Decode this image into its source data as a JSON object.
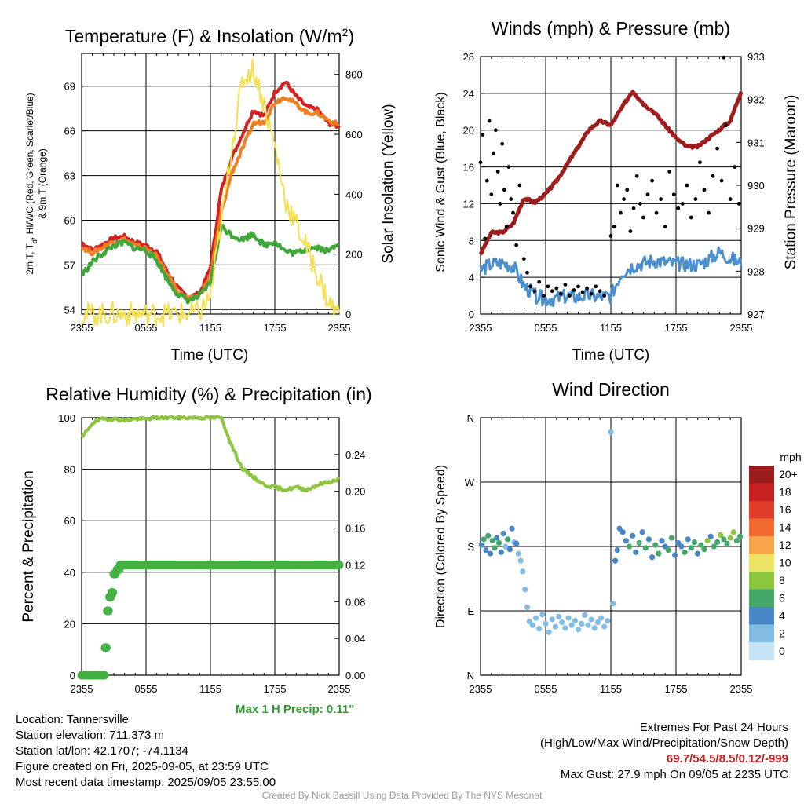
{
  "chart_data": [
    {
      "id": "temperature",
      "type": "line",
      "title": "Temperature (F) & Insolation (W/m",
      "title_sup": "2",
      "title_end": ")",
      "xlabel": "Time (UTC)",
      "ylabel_left_line1": "2m T, T",
      "ylabel_left_sub": "d",
      "ylabel_left_line1_end": ", HI/WC (Red, Green, Scarlet/Blue)",
      "ylabel_left_line2": "& 9m T (Orange)",
      "ylabel_right": "Solar Insolation (Yellow)",
      "x_ticks": [
        "2355",
        "0555",
        "1155",
        "1755",
        "2355"
      ],
      "ylim_left": [
        53.7,
        71.2
      ],
      "yticks_left": [
        "54",
        "57",
        "60",
        "63",
        "66",
        "69"
      ],
      "ylim_right": [
        0,
        870
      ],
      "yticks_right": [
        "0",
        "200",
        "400",
        "600",
        "800"
      ],
      "x_hours": [
        0,
        1,
        2,
        3,
        4,
        5,
        6,
        7,
        8,
        9,
        10,
        11,
        12,
        13,
        14,
        15,
        16,
        17,
        18,
        19,
        20,
        21,
        22,
        23,
        24
      ],
      "series": [
        {
          "color": "#d42020",
          "axis": "left",
          "values": [
            58.5,
            58.0,
            58.4,
            58.8,
            58.9,
            58.5,
            58.3,
            57.9,
            56.5,
            55.4,
            54.8,
            55.1,
            56.8,
            62.0,
            64.2,
            65.8,
            67.4,
            67.0,
            68.6,
            69.3,
            68.3,
            67.6,
            67.4,
            66.5,
            66.3
          ]
        },
        {
          "color": "#f07f22",
          "axis": "left",
          "values": [
            58.2,
            57.8,
            58.2,
            58.6,
            58.7,
            58.3,
            58.1,
            57.6,
            56.3,
            55.2,
            54.7,
            55.0,
            56.2,
            60.5,
            63.2,
            64.8,
            66.5,
            66.6,
            67.9,
            68.3,
            67.8,
            67.2,
            67.2,
            66.7,
            66.4
          ]
        },
        {
          "color": "#3fa63a",
          "axis": "left",
          "values": [
            56.3,
            57.2,
            57.8,
            58.3,
            58.5,
            58.1,
            58.0,
            57.3,
            56.0,
            55.0,
            54.6,
            54.9,
            55.8,
            59.6,
            59.0,
            58.7,
            59.1,
            58.3,
            58.6,
            57.9,
            57.8,
            58.1,
            58.2,
            57.9,
            58.6
          ]
        },
        {
          "color": "#f5e050",
          "axis": "right",
          "values": [
            0,
            0,
            0,
            0,
            0,
            0,
            0,
            0,
            0,
            0,
            0,
            5,
            60,
            300,
            560,
            780,
            820,
            700,
            560,
            380,
            300,
            220,
            130,
            40,
            0
          ]
        }
      ]
    },
    {
      "id": "winds",
      "type": "line",
      "title": "Winds (mph) & Pressure (mb)",
      "xlabel": "Time (UTC)",
      "ylabel_left": "Sonic Wind & Gust (Blue, Black)",
      "ylabel_right": "Station Pressure (Maroon)",
      "x_ticks": [
        "2355",
        "0555",
        "1155",
        "1755",
        "2355"
      ],
      "ylim_left": [
        0,
        28
      ],
      "yticks_left": [
        "0",
        "4",
        "8",
        "12",
        "16",
        "20",
        "24",
        "28"
      ],
      "ylim_right": [
        927,
        933
      ],
      "yticks_right": [
        "927",
        "928",
        "929",
        "930",
        "931",
        "932",
        "933"
      ],
      "x_hours": [
        0,
        1,
        2,
        3,
        4,
        5,
        6,
        7,
        8,
        9,
        10,
        11,
        12,
        13,
        14,
        15,
        16,
        17,
        18,
        19,
        20,
        21,
        22,
        23,
        24
      ],
      "series": [
        {
          "color": "#a01c1c",
          "axis": "right",
          "values": [
            928.4,
            928.9,
            928.9,
            929.1,
            929.7,
            929.6,
            929.8,
            930.1,
            930.5,
            930.9,
            931.3,
            931.5,
            931.4,
            931.8,
            932.2,
            931.9,
            931.7,
            931.4,
            931.1,
            930.9,
            930.9,
            931.1,
            931.3,
            931.5,
            932.2
          ]
        },
        {
          "color": "#4a90d0",
          "axis": "left",
          "values": [
            4.8,
            5.4,
            5.5,
            5.2,
            3.0,
            2.0,
            1.6,
            1.7,
            1.9,
            1.8,
            2.0,
            1.8,
            2.0,
            4.5,
            5.2,
            5.5,
            5.8,
            5.6,
            5.4,
            5.4,
            5.3,
            5.9,
            6.7,
            6.0,
            5.5
          ]
        },
        {
          "type": "scatter",
          "color": "#000000",
          "axis": "left",
          "x": [
            0.0,
            0.2,
            0.4,
            0.6,
            0.8,
            1.0,
            1.2,
            1.4,
            1.6,
            1.8,
            2.0,
            2.2,
            2.4,
            2.6,
            2.8,
            3.0,
            3.3,
            3.6,
            4.0,
            4.3,
            4.6,
            5.0,
            5.4,
            5.8,
            6.2,
            6.6,
            7.0,
            7.4,
            7.8,
            8.2,
            8.6,
            9.0,
            9.4,
            9.8,
            10.2,
            10.6,
            11.0,
            11.4,
            12.0,
            12.3,
            12.6,
            12.9,
            13.2,
            13.5,
            13.8,
            14.1,
            14.4,
            14.7,
            15.0,
            15.4,
            15.8,
            16.2,
            16.6,
            17.0,
            17.4,
            17.8,
            18.2,
            18.6,
            19.0,
            19.4,
            19.8,
            20.2,
            20.6,
            21.0,
            21.4,
            21.8,
            22.2,
            22.4,
            22.6,
            23.0,
            23.4,
            23.8
          ],
          "values": [
            16.5,
            19.5,
            8.2,
            14.5,
            21.0,
            13.0,
            17.5,
            20.0,
            15.5,
            12.0,
            18.5,
            13.5,
            9.5,
            16.0,
            12.5,
            11.0,
            7.5,
            14.0,
            6.0,
            4.5,
            3.0,
            2.5,
            3.5,
            2.0,
            3.0,
            2.5,
            2.8,
            2.2,
            3.2,
            2.0,
            2.6,
            3.0,
            2.4,
            2.8,
            2.2,
            3.0,
            2.5,
            2.0,
            8.5,
            9.5,
            14.0,
            11.0,
            12.5,
            13.5,
            9.0,
            11.5,
            15.0,
            12.0,
            10.5,
            13.0,
            14.5,
            11.0,
            12.5,
            9.5,
            15.5,
            13.0,
            11.5,
            12.0,
            14.0,
            10.5,
            12.5,
            16.5,
            13.5,
            11.0,
            15.0,
            18.0,
            14.5,
            27.9,
            20.5,
            12.5,
            16.0,
            12.0
          ]
        }
      ]
    },
    {
      "id": "humidity",
      "type": "line",
      "title": "Relative Humidity (%) & Precipitation (in)",
      "ylabel_left": "Percent & Precipitation",
      "x_ticks": [
        "2355",
        "0555",
        "1155",
        "1755",
        "2355"
      ],
      "ylim_left": [
        0,
        100
      ],
      "yticks_left": [
        "0",
        "20",
        "40",
        "60",
        "80",
        "100"
      ],
      "ylim_right": [
        0,
        0.28
      ],
      "yticks_right": [
        "0.00",
        "0.04",
        "0.08",
        "0.12",
        "0.16",
        "0.20",
        "0.24"
      ],
      "x_hours": [
        0,
        1,
        2,
        3,
        4,
        5,
        6,
        7,
        8,
        9,
        10,
        11,
        12,
        13,
        14,
        15,
        16,
        17,
        18,
        19,
        20,
        21,
        22,
        23,
        24
      ],
      "series": [
        {
          "color": "#8cc63f",
          "axis": "left",
          "values": [
            92,
            98,
            99.5,
            99.5,
            99,
            99.5,
            99.5,
            100,
            100,
            100,
            100,
            100,
            100,
            100,
            89,
            80,
            77,
            74,
            73,
            72,
            73,
            72,
            74,
            75,
            76
          ]
        },
        {
          "type": "step",
          "color": "#44b044",
          "axis": "right",
          "x": [
            0,
            0.5,
            1.0,
            1.5,
            2.0,
            2.2,
            2.4,
            2.6,
            2.8,
            3.0,
            3.3,
            3.6,
            4.0,
            24
          ],
          "values": [
            0.0,
            0.0,
            0.0,
            0.0,
            0.0,
            0.03,
            0.07,
            0.085,
            0.09,
            0.11,
            0.115,
            0.12,
            0.12,
            0.12
          ]
        }
      ]
    },
    {
      "id": "direction",
      "type": "scatter",
      "title": "Wind Direction",
      "ylabel_left": "Direction (Colored By Speed)",
      "x_ticks": [
        "2355",
        "0555",
        "1155",
        "1755",
        "2355"
      ],
      "yticks_left": [
        "N",
        "E",
        "S",
        "W",
        "N"
      ],
      "ylim_left": [
        0,
        360
      ],
      "legend_title": "mph",
      "legend_labels": [
        "20+",
        "18",
        "16",
        "14",
        "12",
        "10",
        "8",
        "6",
        "4",
        "2",
        "0"
      ],
      "legend_colors": [
        "#9b1c1c",
        "#c72020",
        "#e03c2c",
        "#f06a30",
        "#f7a44a",
        "#ece264",
        "#8cc63f",
        "#44a86a",
        "#4886c6",
        "#82bde6",
        "#c4e4f6"
      ],
      "legend_position": "right",
      "x": [
        0.1,
        0.3,
        0.5,
        0.7,
        0.9,
        1.1,
        1.3,
        1.5,
        1.7,
        1.9,
        2.1,
        2.3,
        2.5,
        2.7,
        2.9,
        3.1,
        3.3,
        3.5,
        3.7,
        3.9,
        4.1,
        4.3,
        4.5,
        4.8,
        5.1,
        5.4,
        5.7,
        6.0,
        6.3,
        6.6,
        6.9,
        7.2,
        7.5,
        7.8,
        8.1,
        8.4,
        8.7,
        9.0,
        9.3,
        9.6,
        9.9,
        10.2,
        10.5,
        10.8,
        11.1,
        11.4,
        11.7,
        12.0,
        12.2,
        12.4,
        12.6,
        12.8,
        13.1,
        13.4,
        13.7,
        14.0,
        14.3,
        14.6,
        14.9,
        15.2,
        15.5,
        15.8,
        16.1,
        16.4,
        16.7,
        17.0,
        17.3,
        17.6,
        17.9,
        18.2,
        18.5,
        18.8,
        19.1,
        19.4,
        19.7,
        20.0,
        20.3,
        20.6,
        20.9,
        21.2,
        21.5,
        21.8,
        22.1,
        22.4,
        22.7,
        23.0,
        23.3,
        23.6,
        23.9
      ],
      "values": [
        182,
        190,
        175,
        195,
        170,
        188,
        178,
        192,
        185,
        172,
        198,
        180,
        190,
        176,
        205,
        186,
        184,
        170,
        160,
        145,
        120,
        95,
        75,
        70,
        80,
        65,
        85,
        72,
        60,
        78,
        68,
        82,
        74,
        66,
        80,
        70,
        76,
        64,
        72,
        84,
        70,
        78,
        66,
        74,
        80,
        68,
        76,
        340,
        100,
        160,
        175,
        205,
        200,
        188,
        180,
        195,
        172,
        185,
        200,
        178,
        190,
        165,
        182,
        170,
        188,
        180,
        175,
        192,
        168,
        185,
        180,
        172,
        190,
        178,
        186,
        170,
        182,
        176,
        188,
        194,
        180,
        186,
        196,
        190,
        184,
        192,
        200,
        188,
        194
      ],
      "speeds": [
        4,
        6,
        4,
        5,
        4,
        5,
        6,
        4,
        5,
        3,
        4,
        2,
        5,
        3,
        4,
        2,
        3,
        2,
        2,
        1,
        1,
        2,
        1,
        1,
        2,
        1,
        2,
        1,
        2,
        1,
        2,
        1,
        1,
        2,
        1,
        2,
        1,
        2,
        1,
        1,
        2,
        1,
        2,
        1,
        1,
        2,
        1,
        1,
        2,
        3,
        4,
        3,
        3,
        4,
        5,
        4,
        4,
        6,
        4,
        5,
        3,
        4,
        6,
        5,
        4,
        3,
        5,
        6,
        4,
        4,
        3,
        5,
        4,
        6,
        5,
        4,
        6,
        5,
        7,
        4,
        6,
        5,
        7,
        6,
        5,
        7,
        8,
        5,
        6
      ]
    }
  ],
  "precip_note": "Max 1 H Precip: 0.11\"",
  "info": {
    "location": "Location: Tannersville",
    "elevation": "Station elevation: 711.373 m",
    "latlon": "Station lat/lon: 42.1707; -74.1134",
    "created": "Figure created on Fri, 2025-09-05, at 23:59 UTC",
    "recent": "Most recent data timestamp: 2025/09/05 23:55:00"
  },
  "extremes": {
    "title": "Extremes For Past 24 Hours",
    "subtitle": "(High/Low/Max Wind/Precipitation/Snow Depth)",
    "values": "69.7/54.5/8.5/0.12/-999",
    "gust": "Max Gust: 27.9 mph On 09/05 at 2235 UTC"
  },
  "credit": "Created By Nick Bassill Using Data Provided By The NYS Mesonet"
}
